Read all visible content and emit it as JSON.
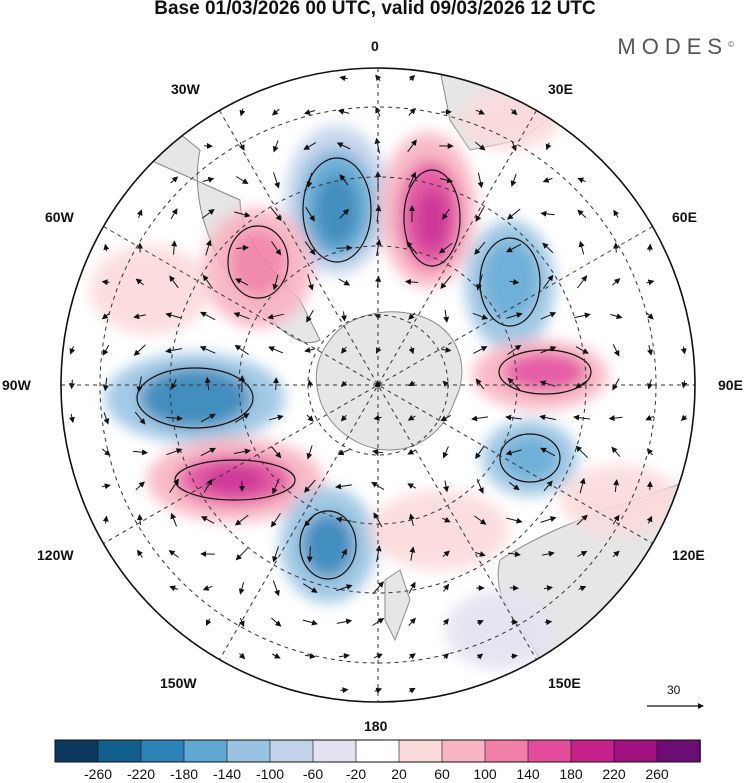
{
  "title": "Base 01/03/2026 00 UTC, valid 09/03/2026 12 UTC",
  "brand": {
    "name": "MODES",
    "mark": "©"
  },
  "longitude_labels": {
    "lon_0": "0",
    "lon_30e": "30E",
    "lon_60e": "60E",
    "lon_90e": "90E",
    "lon_120e": "120E",
    "lon_150e": "150E",
    "lon_180": "180",
    "lon_150w": "150W",
    "lon_120w": "120W",
    "lon_90w": "90W",
    "lon_60w": "60W",
    "lon_30w": "30W"
  },
  "reference_vector": {
    "value": "30"
  },
  "colorbar": {
    "colors": [
      "#0c3a5e",
      "#135f8e",
      "#2d82b8",
      "#5ea8d3",
      "#98c3e2",
      "#c2d2eb",
      "#e4e2f1",
      "#ffffff",
      "#fbdada",
      "#f8b4c1",
      "#f27fa8",
      "#e44d9d",
      "#c8218c",
      "#a0107f",
      "#6b0d74"
    ],
    "labels": [
      "-260",
      "-220",
      "-180",
      "-140",
      "-100",
      "-60",
      "-20",
      "20",
      "60",
      "100",
      "140",
      "180",
      "220",
      "260"
    ]
  },
  "colors": {
    "land": "#e6e6e6",
    "land_edge": "#8a8a8a",
    "grid": "#333333"
  }
}
